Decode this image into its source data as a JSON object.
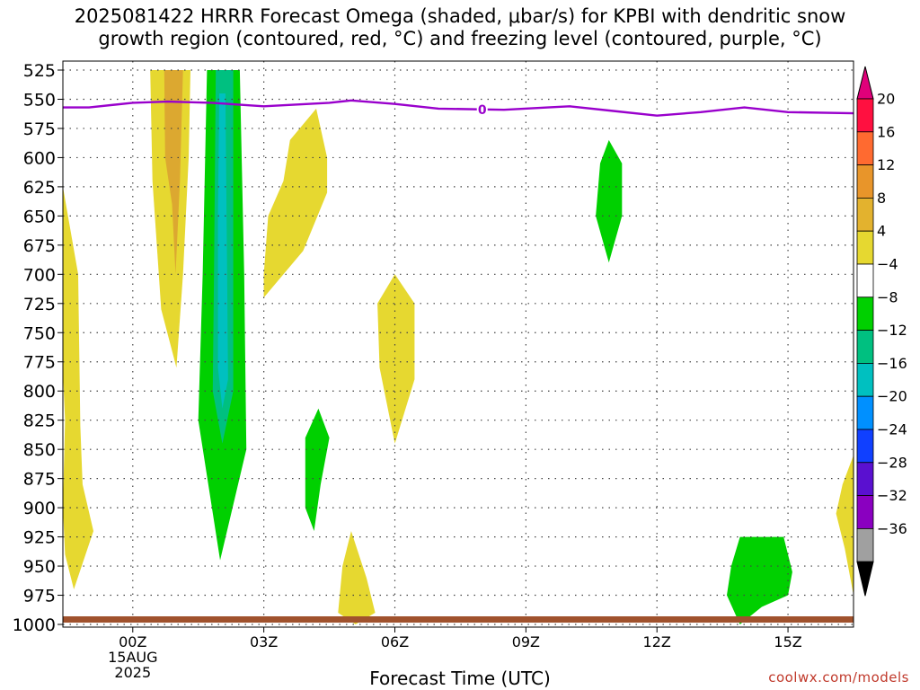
{
  "title": {
    "line1": "2025081422 HRRR Forecast Omega (shaded, μbar/s) for KPBI with dendritic snow",
    "line2": "growth region (contoured, red, °C) and freezing level (contoured, purple, °C)"
  },
  "xlabel": "Forecast Time (UTC)",
  "credit": "coolwx.com/models",
  "colors": {
    "green": "#00d000",
    "mediumaquamarine": "#00c080",
    "cyan": "#00c0c0",
    "yellow": "#e6d830",
    "orange": "#dca830",
    "purple": "#9900cc",
    "ground": "#a0522d"
  },
  "chart_data": {
    "type": "heatmap",
    "x_range_hours": [
      -1.6,
      16.5
    ],
    "ylim": [
      525,
      1010
    ],
    "y_ticks": [
      525,
      550,
      575,
      600,
      625,
      650,
      675,
      700,
      725,
      750,
      775,
      800,
      825,
      850,
      875,
      900,
      925,
      950,
      975,
      1000
    ],
    "x_ticks": [
      {
        "hour": 0,
        "label": "00Z",
        "sub1": "15AUG",
        "sub2": "2025"
      },
      {
        "hour": 3,
        "label": "03Z"
      },
      {
        "hour": 6,
        "label": "06Z"
      },
      {
        "hour": 9,
        "label": "09Z"
      },
      {
        "hour": 12,
        "label": "12Z"
      },
      {
        "hour": 15,
        "label": "15Z"
      }
    ],
    "grid": true,
    "colorbar": {
      "labels": [
        "20",
        "16",
        "12",
        "8",
        "4",
        "−4",
        "−8",
        "−12",
        "−16",
        "−20",
        "−24",
        "−28",
        "−32",
        "−36"
      ],
      "colors": [
        "#ff1040",
        "#ff6a30",
        "#e8952a",
        "#e3b22e",
        "#e6d830",
        "#ffffff",
        "#00d000",
        "#00c080",
        "#00c0c0",
        "#0090ff",
        "#1040ff",
        "#5a10d0",
        "#8a00c0",
        "#a0a0a0"
      ],
      "top_arrow": "#e0007a",
      "bottom_arrow": "#000000"
    },
    "freezing_level": {
      "label": "0",
      "points": [
        [
          -2.0,
          557
        ],
        [
          -1.0,
          557
        ],
        [
          0.0,
          553
        ],
        [
          0.8,
          552
        ],
        [
          1.8,
          553
        ],
        [
          3.0,
          556
        ],
        [
          4.5,
          553
        ],
        [
          5.0,
          551
        ],
        [
          6.0,
          554
        ],
        [
          7.0,
          558
        ],
        [
          8.5,
          559
        ],
        [
          9.5,
          557
        ],
        [
          10.0,
          556
        ],
        [
          11.0,
          560
        ],
        [
          12.0,
          564
        ],
        [
          13.0,
          561
        ],
        [
          14.0,
          557
        ],
        [
          15.0,
          561
        ],
        [
          16.5,
          562
        ]
      ]
    },
    "shaded_regions": [
      {
        "value": 4,
        "color": "#e6d830",
        "points": [
          [
            0.42,
            525
          ],
          [
            1.32,
            525
          ],
          [
            1.28,
            600
          ],
          [
            1.15,
            700
          ],
          [
            1.0,
            780
          ],
          [
            0.65,
            730
          ],
          [
            0.45,
            620
          ],
          [
            0.4,
            525
          ]
        ]
      },
      {
        "value": 8,
        "color": "#dca830",
        "points": [
          [
            0.72,
            525
          ],
          [
            1.15,
            525
          ],
          [
            1.08,
            620
          ],
          [
            0.98,
            700
          ],
          [
            0.9,
            640
          ],
          [
            0.74,
            600
          ]
        ]
      },
      {
        "value": -4,
        "color": "#00d000",
        "points": [
          [
            1.7,
            525
          ],
          [
            2.45,
            525
          ],
          [
            2.55,
            700
          ],
          [
            2.6,
            850
          ],
          [
            2.0,
            945
          ],
          [
            1.5,
            825
          ],
          [
            1.6,
            700
          ],
          [
            1.7,
            525
          ]
        ]
      },
      {
        "value": -8,
        "color": "#00c080",
        "points": [
          [
            1.9,
            525
          ],
          [
            2.3,
            525
          ],
          [
            2.3,
            700
          ],
          [
            2.3,
            800
          ],
          [
            2.05,
            845
          ],
          [
            1.83,
            800
          ],
          [
            1.86,
            700
          ]
        ]
      },
      {
        "value": -12,
        "color": "#00c0c0",
        "points": [
          [
            1.98,
            545
          ],
          [
            2.12,
            545
          ],
          [
            2.16,
            700
          ],
          [
            2.18,
            790
          ],
          [
            2.05,
            815
          ],
          [
            1.95,
            780
          ],
          [
            1.95,
            650
          ]
        ]
      },
      {
        "value": 4,
        "color": "#e6d830",
        "points": [
          [
            -1.6,
            625
          ],
          [
            -1.25,
            700
          ],
          [
            -1.2,
            830
          ],
          [
            -1.15,
            880
          ],
          [
            -0.9,
            920
          ],
          [
            -1.35,
            970
          ],
          [
            -1.55,
            940
          ],
          [
            -1.6,
            900
          ],
          [
            -1.55,
            825
          ],
          [
            -1.7,
            700
          ]
        ]
      },
      {
        "value": 4,
        "color": "#e6d830",
        "points": [
          [
            3.0,
            720
          ],
          [
            3.9,
            680
          ],
          [
            4.45,
            630
          ],
          [
            4.45,
            600
          ],
          [
            4.2,
            558
          ],
          [
            3.6,
            585
          ],
          [
            3.45,
            620
          ],
          [
            3.1,
            650
          ],
          [
            3.0,
            700
          ]
        ]
      },
      {
        "value": -4,
        "color": "#00d000",
        "points": [
          [
            4.25,
            815
          ],
          [
            4.5,
            840
          ],
          [
            4.3,
            880
          ],
          [
            4.15,
            920
          ],
          [
            3.95,
            900
          ],
          [
            3.95,
            840
          ]
        ]
      },
      {
        "value": 4,
        "color": "#e6d830",
        "points": [
          [
            6.0,
            700
          ],
          [
            6.45,
            725
          ],
          [
            6.45,
            790
          ],
          [
            6.0,
            845
          ],
          [
            5.65,
            780
          ],
          [
            5.6,
            725
          ]
        ]
      },
      {
        "value": 4,
        "color": "#e6d830",
        "points": [
          [
            5.0,
            920
          ],
          [
            5.35,
            960
          ],
          [
            5.55,
            990
          ],
          [
            5.1,
            1000
          ],
          [
            4.7,
            990
          ],
          [
            4.8,
            950
          ]
        ]
      },
      {
        "value": -4,
        "color": "#00d000",
        "points": [
          [
            10.9,
            585
          ],
          [
            11.2,
            605
          ],
          [
            11.2,
            650
          ],
          [
            10.9,
            690
          ],
          [
            10.6,
            650
          ],
          [
            10.7,
            605
          ]
        ]
      },
      {
        "value": -4,
        "color": "#00d000",
        "points": [
          [
            13.9,
            925
          ],
          [
            14.9,
            925
          ],
          [
            15.1,
            955
          ],
          [
            15.0,
            975
          ],
          [
            14.4,
            985
          ],
          [
            13.9,
            1000
          ],
          [
            13.6,
            975
          ],
          [
            13.7,
            950
          ]
        ]
      },
      {
        "value": 4,
        "color": "#e6d830",
        "points": [
          [
            16.5,
            855
          ],
          [
            16.25,
            880
          ],
          [
            16.1,
            905
          ],
          [
            16.3,
            935
          ],
          [
            16.5,
            975
          ]
        ]
      }
    ]
  }
}
